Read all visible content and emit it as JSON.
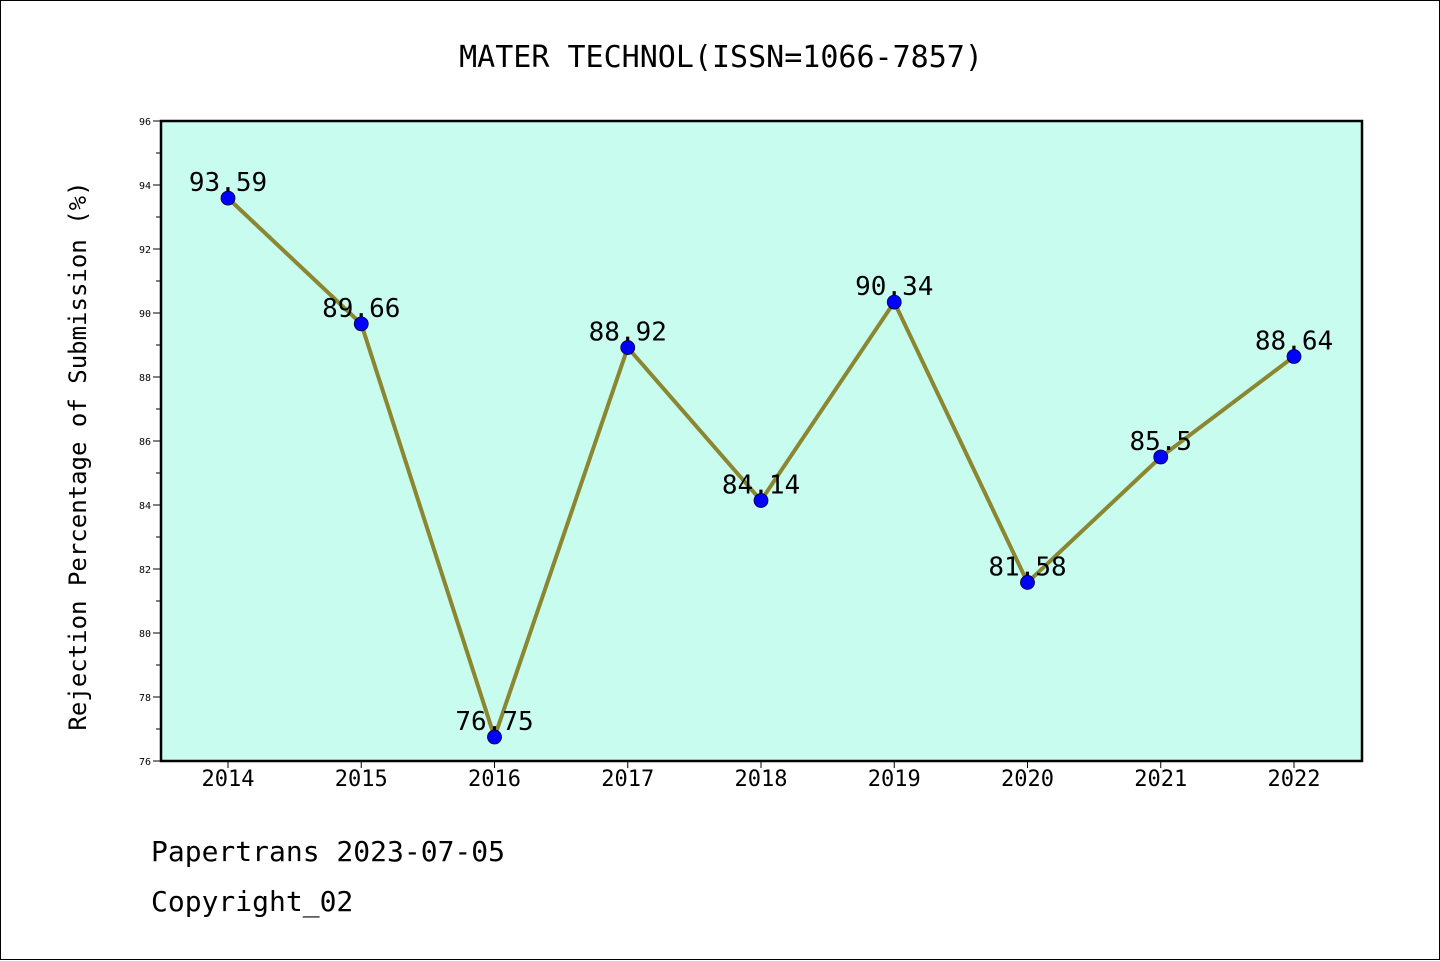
{
  "chart_data": {
    "type": "line",
    "title": "MATER TECHNOL(ISSN=1066-7857)",
    "xlabel": "",
    "ylabel": "Rejection Percentage of Submission (%)",
    "categories": [
      "2014",
      "2015",
      "2016",
      "2017",
      "2018",
      "2019",
      "2020",
      "2021",
      "2022"
    ],
    "series": [
      {
        "values": [
          93.59,
          89.66,
          76.75,
          88.92,
          84.14,
          90.34,
          81.58,
          85.5,
          88.64
        ],
        "labels": [
          "93.59",
          "89.66",
          "76.75",
          "88.92",
          "84.14",
          "90.34",
          "81.58",
          "85.5",
          "88.64"
        ]
      }
    ],
    "ylim": [
      76,
      96
    ],
    "yticks": [
      "76",
      "78",
      "80",
      "82",
      "84",
      "86",
      "88",
      "90",
      "92",
      "94",
      "96"
    ],
    "grid": false,
    "colors": {
      "plot_background": "#c8fcef",
      "line": "#8b8630",
      "marker": "#0000ff"
    }
  },
  "footer": {
    "line1": "Papertrans 2023-07-05",
    "line2": "Copyright_02"
  }
}
